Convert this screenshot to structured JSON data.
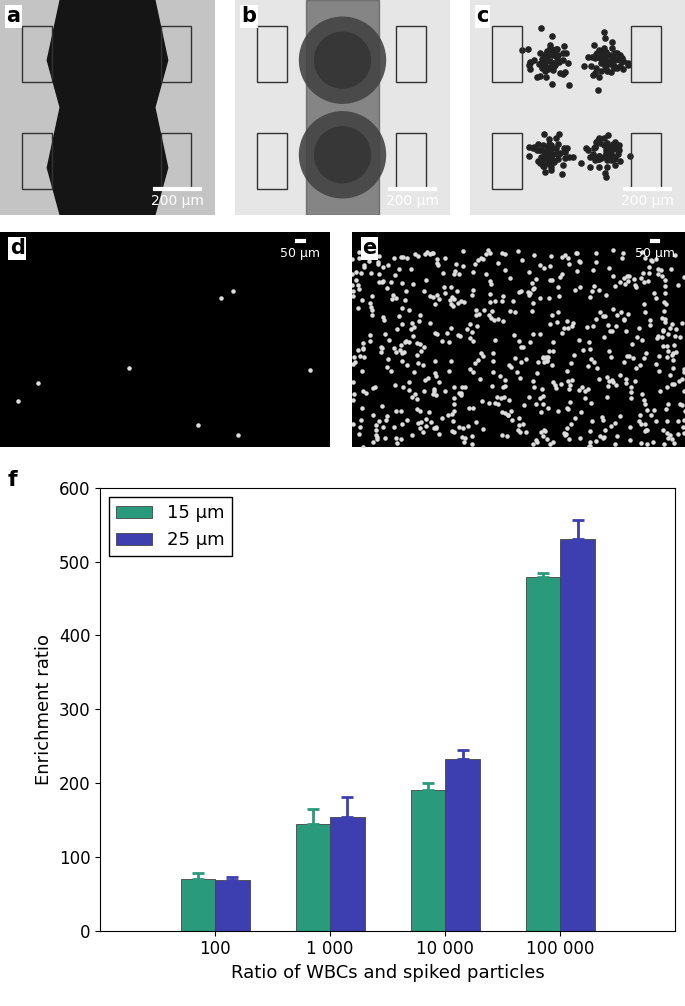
{
  "panels": [
    {
      "label": "a",
      "scale_bar": "200 μm"
    },
    {
      "label": "b",
      "scale_bar": "200 μm"
    },
    {
      "label": "c",
      "scale_bar": "200 μm"
    },
    {
      "label": "d",
      "scale_bar": "50 μm"
    },
    {
      "label": "e",
      "scale_bar": "50 μm"
    }
  ],
  "chart_data": {
    "type": "bar",
    "panel_label": "f",
    "x_label": "Ratio of WBCs and spiked particles",
    "y_label": "Enrichment ratio",
    "categories": [
      "100",
      "1 000",
      "10 000",
      "100 000"
    ],
    "series": [
      {
        "name": "15 μm",
        "color": "#2a9a7c",
        "values": [
          70,
          145,
          191,
          479
        ],
        "errors": [
          8,
          20,
          9,
          6
        ]
      },
      {
        "name": "25 μm",
        "color": "#3d3fb0",
        "values": [
          68,
          154,
          233,
          531
        ],
        "errors": [
          5,
          27,
          12,
          26
        ]
      }
    ],
    "ylim": [
      0,
      600
    ],
    "yticks": [
      0,
      100,
      200,
      300,
      400,
      500,
      600
    ],
    "legend": "upper left"
  }
}
